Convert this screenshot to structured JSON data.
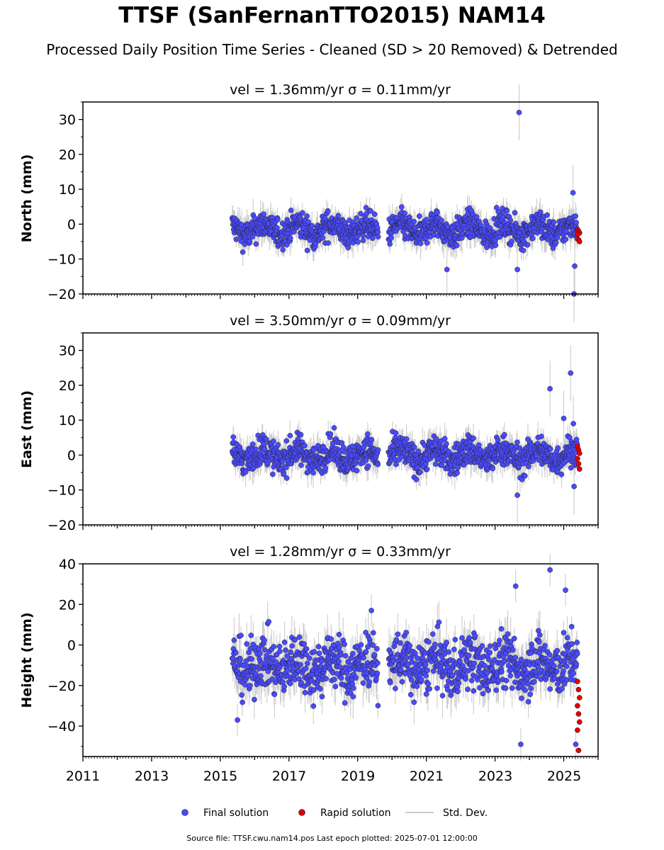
{
  "header": {
    "title": "TTSF (SanFernanTTO2015) NAM14",
    "subtitle": "Processed Daily Position Time Series - Cleaned (SD > 20 Removed) & Detrended"
  },
  "footer": {
    "text": "Source file: TTSF.cwu.nam14.pos  Last epoch plotted: 2025-07-01 12:00:00"
  },
  "colors": {
    "final": "#4a4aff",
    "rapid": "#e00000",
    "stddev": "#bbbbbb"
  },
  "chart_data": [
    {
      "type": "scatter",
      "title": "vel = 1.36mm/yr   σ = 0.11mm/yr",
      "ylabel": "North (mm)",
      "ylim": [
        -20,
        35
      ],
      "yticks": [
        -20,
        -10,
        0,
        10,
        20,
        30
      ],
      "xlim": [
        2011,
        2026
      ],
      "grid": false,
      "series": [
        {
          "name": "Final solution",
          "x_range": [
            2015.35,
            2025.4
          ],
          "gap": [
            2019.6,
            2019.9
          ],
          "center": -1.5,
          "spread": 2.0,
          "outliers": [
            [
              2023.7,
              32
            ],
            [
              2023.65,
              -13
            ],
            [
              2025.3,
              -20
            ],
            [
              2025.32,
              -12
            ],
            [
              2021.6,
              -13
            ],
            [
              2025.27,
              9
            ]
          ]
        },
        {
          "name": "Rapid solution",
          "x_range": [
            2025.4,
            2025.5
          ],
          "values": [
            -1.5,
            -2.0,
            -2.5,
            -3.0,
            -4.5,
            -5.0
          ]
        }
      ]
    },
    {
      "type": "scatter",
      "title": "vel = 3.50mm/yr   σ = 0.09mm/yr",
      "ylabel": "East (mm)",
      "ylim": [
        -20,
        35
      ],
      "yticks": [
        -20,
        -10,
        0,
        10,
        20,
        30
      ],
      "xlim": [
        2011,
        2026
      ],
      "grid": false,
      "series": [
        {
          "name": "Final solution",
          "x_range": [
            2015.35,
            2025.4
          ],
          "gap": [
            2019.6,
            2019.9
          ],
          "center": 0.0,
          "spread": 2.2,
          "outliers": [
            [
              2025.2,
              23.5
            ],
            [
              2024.6,
              19
            ],
            [
              2025.0,
              10.5
            ],
            [
              2023.65,
              -11.5
            ],
            [
              2025.3,
              -9
            ],
            [
              2025.28,
              9
            ]
          ]
        },
        {
          "name": "Rapid solution",
          "x_range": [
            2025.4,
            2025.5
          ],
          "values": [
            2.5,
            1.5,
            0.5,
            -1.0,
            -2.5,
            -4.0
          ]
        }
      ]
    },
    {
      "type": "scatter",
      "title": "vel = 1.28mm/yr   σ = 0.33mm/yr",
      "ylabel": "Height (mm)",
      "ylim": [
        -55,
        40
      ],
      "yticks": [
        -40,
        -20,
        0,
        20,
        40
      ],
      "xlim": [
        2011,
        2026
      ],
      "grid": false,
      "series": [
        {
          "name": "Final solution",
          "x_range": [
            2015.35,
            2025.4
          ],
          "gap": [
            2019.6,
            2019.9
          ],
          "center": -10,
          "spread": 7.0,
          "outliers": [
            [
              2024.6,
              37
            ],
            [
              2023.6,
              29
            ],
            [
              2025.05,
              27
            ],
            [
              2023.75,
              -49
            ],
            [
              2025.35,
              -49
            ],
            [
              2015.5,
              -37
            ],
            [
              2019.4,
              17
            ]
          ]
        },
        {
          "name": "Rapid solution",
          "x_range": [
            2025.4,
            2025.5
          ],
          "values": [
            -18,
            -22,
            -26,
            -30,
            -34,
            -38,
            -42,
            -52
          ]
        }
      ]
    }
  ],
  "xaxis": {
    "ticks": [
      "2011",
      "2013",
      "2015",
      "2017",
      "2019",
      "2021",
      "2023",
      "2025"
    ]
  },
  "legend": {
    "final": "Final solution",
    "rapid": "Rapid solution",
    "std": "Std. Dev."
  }
}
